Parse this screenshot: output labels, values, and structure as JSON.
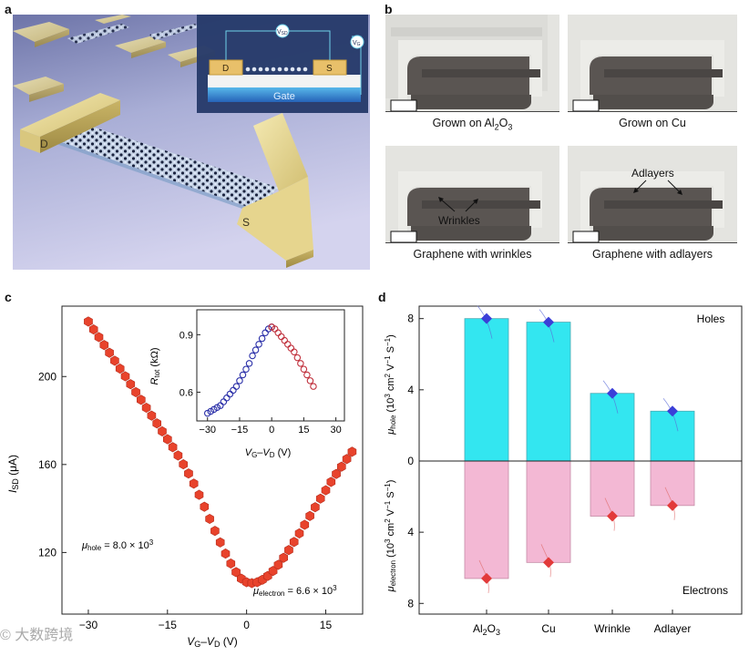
{
  "panel_labels": {
    "a": "a",
    "b": "b",
    "c": "c",
    "d": "d"
  },
  "panel_a": {
    "electrode_d": "D",
    "electrode_s": "S",
    "inset": {
      "vsd": "V",
      "vsd_sub": "SD",
      "vg": "V",
      "vg_sub": "G",
      "d": "D",
      "s": "S",
      "gate": "Gate"
    }
  },
  "panel_b": {
    "tiles": [
      {
        "caption_pre": "Grown on Al",
        "caption_sub": "2",
        "caption_mid": "O",
        "caption_sub2": "3"
      },
      {
        "caption_pre": "Grown on Cu"
      },
      {
        "caption_pre": "Graphene with wrinkles",
        "annotation": "Wrinkles"
      },
      {
        "caption_pre": "Graphene with adlayers",
        "annotation": "Adlayers"
      }
    ]
  },
  "panel_c": {
    "ylabel_main": "I",
    "ylabel_sub": "SD",
    "ylabel_unit": " (μA)",
    "xlabel": {
      "a": "V",
      "a_sub": "G",
      "dash": "–",
      "b": "V",
      "b_sub": "D",
      "unit": " (V)"
    },
    "mu_hole": {
      "mu": "μ",
      "sub": "hole",
      "val": " = 8.0 × 10",
      "exp": "3"
    },
    "mu_electron": {
      "mu": "μ",
      "sub": "electron",
      "val": " = 6.6 × 10",
      "exp": "3"
    },
    "inset": {
      "ylabel_main": "R",
      "ylabel_sub": "tot",
      "ylabel_unit": " (kΩ)"
    },
    "colors": {
      "main": "#e8432c",
      "inset_blue": "#2a2fa8",
      "inset_red": "#c0303c"
    }
  },
  "panel_d": {
    "ylabel_top": {
      "mu": "μ",
      "sub": "hole",
      "rest": " (10",
      "exp1": "3",
      "mid": " cm",
      "exp2": "2",
      "mid2": " V",
      "exp3": "−1",
      "mid3": " S",
      "exp4": "−1",
      "end": ")"
    },
    "ylabel_bottom": {
      "mu": "μ",
      "sub": "electron",
      "rest": " (10",
      "exp1": "3",
      "mid": " cm",
      "exp2": "2",
      "mid2": " V",
      "exp3": "−1",
      "mid3": " S",
      "exp4": "−1",
      "end": ")"
    },
    "holes_label": "Holes",
    "electrons_label": "Electrons",
    "colors": {
      "holes": "#33e6f0",
      "electrons": "#f3b8d4",
      "hole_marker": "#3b3fd8",
      "electron_marker": "#e23a3a"
    }
  },
  "chart_data": [
    {
      "id": "c-main",
      "type": "scatter",
      "title": "",
      "xlabel": "VG–VD (V)",
      "ylabel": "ISD (μA)",
      "xlim": [
        -35,
        22
      ],
      "ylim": [
        92,
        232
      ],
      "xticks": [
        -30,
        -15,
        0,
        15
      ],
      "yticks": [
        120,
        160,
        200
      ],
      "series": [
        {
          "name": "ISD",
          "x": [
            -30,
            -29,
            -28,
            -27,
            -26,
            -25,
            -24,
            -23,
            -22,
            -21,
            -20,
            -19,
            -18,
            -17,
            -16,
            -15,
            -14,
            -13,
            -12,
            -11,
            -10,
            -9,
            -8,
            -7,
            -6,
            -5,
            -4,
            -3,
            -2,
            -1,
            0,
            1,
            2,
            3,
            4,
            5,
            6,
            7,
            8,
            9,
            10,
            11,
            12,
            13,
            14,
            15,
            16,
            17,
            18,
            19,
            20
          ],
          "y": [
            225.0,
            221.4,
            217.9,
            214.3,
            210.8,
            207.2,
            203.6,
            200.1,
            196.5,
            192.9,
            189.4,
            185.8,
            182.2,
            178.7,
            175.1,
            171.5,
            167.9,
            164.1,
            160.1,
            155.9,
            151.3,
            146.2,
            140.8,
            135.3,
            129.8,
            124.6,
            119.5,
            115.0,
            111.1,
            108.1,
            106.5,
            106.1,
            106.5,
            107.6,
            109.3,
            111.6,
            114.4,
            117.6,
            121.1,
            124.8,
            128.7,
            132.6,
            136.6,
            140.6,
            144.5,
            148.3,
            152.1,
            155.7,
            159.0,
            162.5,
            165.8
          ]
        }
      ]
    },
    {
      "id": "c-inset",
      "type": "scatter",
      "title": "",
      "xlabel": "VG–VD (V)",
      "ylabel": "Rtot (kΩ)",
      "xlim": [
        -35,
        34
      ],
      "ylim": [
        0.45,
        1.03
      ],
      "xticks": [
        -30,
        -15,
        0,
        15,
        30
      ],
      "yticks": [
        0.6,
        0.9
      ],
      "series": [
        {
          "name": "hole side",
          "x": [
            -30,
            -28.5,
            -27,
            -25.5,
            -24,
            -22.5,
            -21,
            -19.5,
            -18,
            -16.5,
            -15,
            -13.5,
            -12,
            -10.5,
            -9,
            -7.5,
            -6,
            -4.5,
            -3,
            -1.5,
            0
          ],
          "y": [
            0.49,
            0.5,
            0.51,
            0.52,
            0.53,
            0.55,
            0.57,
            0.59,
            0.61,
            0.63,
            0.66,
            0.69,
            0.72,
            0.75,
            0.79,
            0.82,
            0.85,
            0.88,
            0.91,
            0.93,
            0.94
          ]
        },
        {
          "name": "electron side",
          "x": [
            0,
            1.5,
            3,
            4.5,
            6,
            7.5,
            9,
            10.5,
            12,
            13.5,
            15,
            16.5,
            18,
            19.5
          ],
          "y": [
            0.94,
            0.93,
            0.91,
            0.89,
            0.87,
            0.85,
            0.83,
            0.81,
            0.78,
            0.75,
            0.72,
            0.69,
            0.66,
            0.63
          ]
        }
      ]
    },
    {
      "id": "d-bars",
      "type": "bar",
      "title": "",
      "xlabel": "",
      "categories": [
        {
          "pre": "Al",
          "s1": "2",
          "mid": "O",
          "s2": "3"
        },
        {
          "pre": "Cu"
        },
        {
          "pre": "Wrinkle"
        },
        {
          "pre": "Adlayer"
        }
      ],
      "ylim": [
        -8.6,
        8.7
      ],
      "yticks_top": [
        0,
        4,
        8
      ],
      "yticks_bottom": [
        4,
        8
      ],
      "series": [
        {
          "name": "Holes",
          "values": [
            8.0,
            7.8,
            3.8,
            2.8
          ]
        },
        {
          "name": "Electrons",
          "values": [
            6.6,
            5.7,
            3.1,
            2.5
          ]
        }
      ]
    }
  ],
  "watermark": "© 大数跨境"
}
